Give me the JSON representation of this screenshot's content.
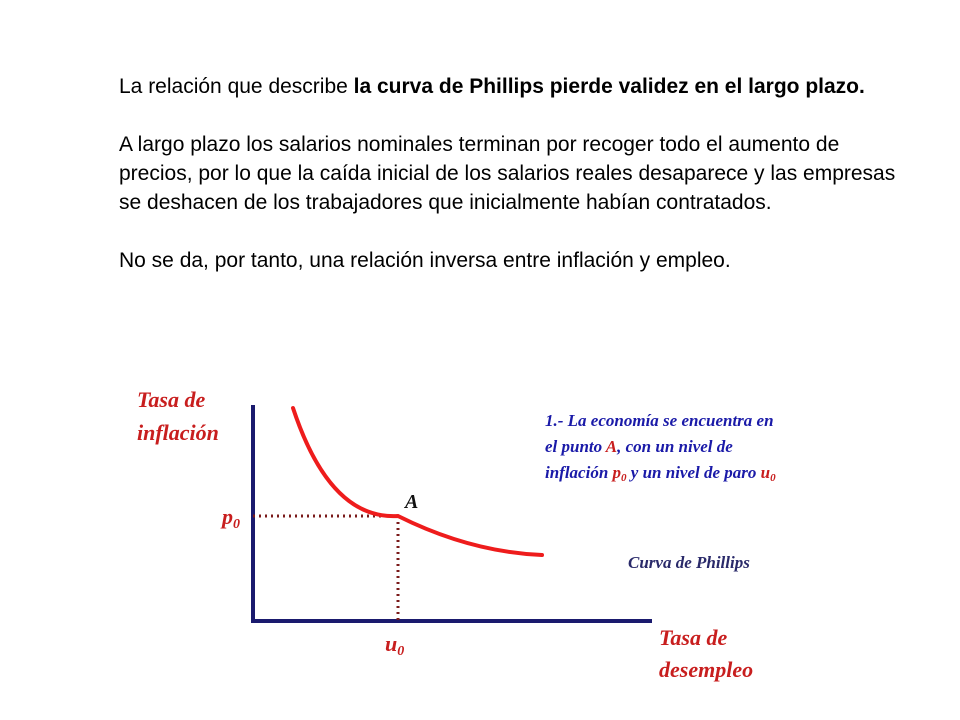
{
  "text": {
    "p1_normal": "La relación que describe ",
    "p1_bold": "la curva de Phillips pierde validez en el largo plazo.",
    "p2": "A largo plazo los salarios nominales terminan por recoger todo el aumento de precios, por lo que la caída inicial de los salarios reales desaparece y las empresas se deshacen de los trabajadores que inicialmente habían contratados.",
    "p3": "No se da, por tanto, una relación inversa entre inflación y empleo."
  },
  "diagram": {
    "y_axis_label_line1": "Tasa de",
    "y_axis_label_line2": "inflación",
    "x_axis_label_line1": "Tasa de",
    "x_axis_label_line2": "desempleo",
    "point_label": "A",
    "p_label": "p",
    "p_sub": "0",
    "u_label": "u",
    "u_sub": "0",
    "curve_label": "Curva de Phillips",
    "note_line1": "1.- La economía se encuentra en",
    "note_line2_a": "el punto ",
    "note_line2_b": "A",
    "note_line2_c": ", con un nivel de",
    "note_line3_a": "inflación ",
    "note_line3_b": "p",
    "note_line3_c": "0",
    "note_line3_d": " y un nivel de paro ",
    "note_line3_e": "u",
    "note_line3_f": "0",
    "colors": {
      "axis": "#1a1a6e",
      "curve": "#ee1c1c",
      "label_red": "#c81e1e",
      "note_blue": "#1a1aa8",
      "curve_label": "#2a2a6a",
      "dotted": "#7a1a1a"
    }
  }
}
